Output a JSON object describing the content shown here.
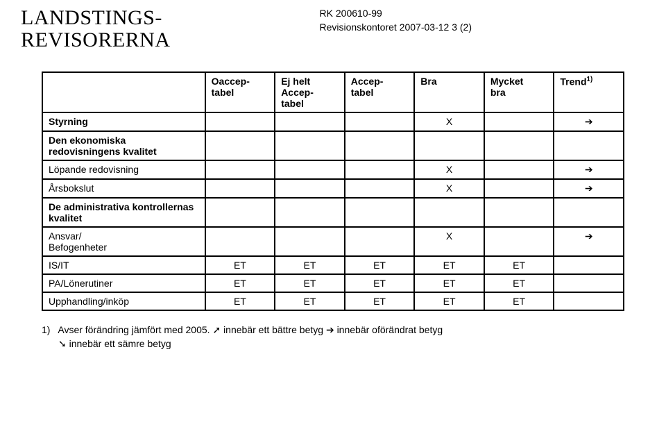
{
  "header": {
    "org_line1": "LANDSTINGS-",
    "org_line2": "REVISORERNA",
    "doc_ref": "RK 200610-99",
    "doc_date_line": "Revisionskontoret 2007-03-12  3 (2)"
  },
  "table": {
    "columns": [
      "",
      "Oaccep-\ntabel",
      "Ej helt\nAccep-\ntabel",
      "Accep-\ntabel",
      "Bra",
      "Mycket\nbra",
      "Trend"
    ],
    "trend_sup": "1)",
    "rows": [
      {
        "label": "Styrning",
        "bold": true,
        "cells": [
          "",
          "",
          "",
          "X",
          "",
          "➔"
        ]
      },
      {
        "label": "Den ekonomiska redovisningens kvalitet",
        "bold": true,
        "section_header": true
      },
      {
        "label": "Löpande redovisning",
        "cells": [
          "",
          "",
          "",
          "X",
          "",
          "➔"
        ]
      },
      {
        "label": "Årsbokslut",
        "cells": [
          "",
          "",
          "",
          "X",
          "",
          "➔"
        ]
      },
      {
        "label": "De administrativa kontrollernas kvalitet",
        "bold": true,
        "section_header": true,
        "gap_before": true
      },
      {
        "label": "Ansvar/\nBefogenheter",
        "cells": [
          "",
          "",
          "",
          "X",
          "",
          "➔"
        ]
      },
      {
        "label": "IS/IT",
        "cells": [
          "ET",
          "ET",
          "ET",
          "ET",
          "ET",
          ""
        ]
      },
      {
        "label": "PA/Lönerutiner",
        "cells": [
          "ET",
          "ET",
          "ET",
          "ET",
          "ET",
          ""
        ]
      },
      {
        "label": "Upphandling/inköp",
        "cells": [
          "ET",
          "ET",
          "ET",
          "ET",
          "ET",
          ""
        ]
      }
    ]
  },
  "footnote": {
    "num": "1)",
    "text_a": "Avser förändring jämfört med 2005. ",
    "arrow_up": "➚",
    "text_b": " innebär ett bättre betyg ",
    "arrow_right": "➔",
    "text_c": " innebär oförändrat betyg",
    "arrow_down": "➘",
    "text_d": " innebär ett sämre betyg"
  }
}
